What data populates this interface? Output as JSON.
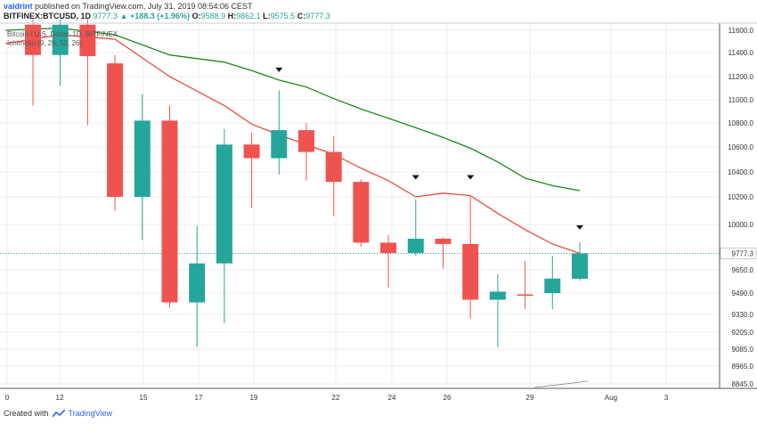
{
  "header": {
    "user": "valdrint",
    "published": " published on TradingView.com, July 31, 2019 08:54:06 CEST"
  },
  "info": {
    "symbol": "BITFINEX:BTCUSD, 1D",
    "last": "9777.3",
    "change": "▲ +188.3 (+1.96%)",
    "open_label": "O:",
    "open": "9588.9",
    "high_label": "H:",
    "high": "9862.1",
    "low_label": "L:",
    "low": "9575.5",
    "close_label": "C:",
    "close": "9777.3"
  },
  "legend": {
    "series": "Bitcoin / U.S. Dollar, 1D, BITFINEX",
    "indicator": "Ichimoku (9, 26, 52, 26)"
  },
  "footer": {
    "created": "Created with",
    "brand": "TradingView"
  },
  "colors": {
    "up": "#26a69a",
    "down": "#ef5350",
    "conversion": "#e74c3c",
    "base": "#1b8a1b",
    "grid": "#eeeeee"
  },
  "chart_data": {
    "type": "candlestick",
    "x_ticks": [
      "0",
      "12",
      "15",
      "17",
      "19",
      "22",
      "24",
      "26",
      "29",
      "Aug",
      "3"
    ],
    "y_ticks": [
      "11600.0",
      "11400.0",
      "11200.0",
      "11000.0",
      "10800.0",
      "10600.0",
      "10400.0",
      "10200.0",
      "10000.0",
      "9650.0",
      "9490.0",
      "9330.0",
      "9205.0",
      "9085.0",
      "8965.0",
      "8845.0"
    ],
    "last_price_label": "9777.3",
    "candles": [
      {
        "x": 10,
        "open": 11650,
        "high": 11700,
        "low": 10950,
        "close": 11380
      },
      {
        "x": 11,
        "open": 11380,
        "high": 11700,
        "low": 11120,
        "close": 11650
      },
      {
        "x": 12,
        "open": 11650,
        "high": 11700,
        "low": 10780,
        "close": 11370
      },
      {
        "x": 13,
        "open": 11310,
        "high": 11380,
        "low": 10100,
        "close": 10200
      },
      {
        "x": 14,
        "open": 10200,
        "high": 11050,
        "low": 9880,
        "close": 10820
      },
      {
        "x": 15,
        "open": 10820,
        "high": 10950,
        "low": 9380,
        "close": 9420
      },
      {
        "x": 16,
        "open": 9420,
        "high": 9990,
        "low": 9100,
        "close": 9700
      },
      {
        "x": 17,
        "open": 9700,
        "high": 10750,
        "low": 9270,
        "close": 10620
      },
      {
        "x": 18,
        "open": 10620,
        "high": 10720,
        "low": 10120,
        "close": 10510
      },
      {
        "x": 19,
        "open": 10510,
        "high": 11080,
        "low": 10380,
        "close": 10740
      },
      {
        "x": 20,
        "open": 10740,
        "high": 10800,
        "low": 10330,
        "close": 10560
      },
      {
        "x": 21,
        "open": 10560,
        "high": 10690,
        "low": 10060,
        "close": 10320
      },
      {
        "x": 22,
        "open": 10320,
        "high": 10340,
        "low": 9830,
        "close": 9860
      },
      {
        "x": 23,
        "open": 9860,
        "high": 9920,
        "low": 9530,
        "close": 9780
      },
      {
        "x": 24,
        "open": 9780,
        "high": 10180,
        "low": 9760,
        "close": 9890
      },
      {
        "x": 25,
        "open": 9890,
        "high": 9900,
        "low": 9660,
        "close": 9850
      },
      {
        "x": 26,
        "open": 9850,
        "high": 10200,
        "low": 9300,
        "close": 9440
      },
      {
        "x": 27,
        "open": 9440,
        "high": 9620,
        "low": 9100,
        "close": 9500
      },
      {
        "x": 28,
        "open": 9480,
        "high": 9720,
        "low": 9370,
        "close": 9470
      },
      {
        "x": 29,
        "open": 9490,
        "high": 9760,
        "low": 9370,
        "close": 9590
      },
      {
        "x": 30,
        "open": 9588.9,
        "high": 9862.1,
        "low": 9575.5,
        "close": 9777.3
      }
    ],
    "conversion_line": {
      "x": [
        9,
        11,
        13,
        15,
        17,
        18,
        19,
        20,
        21,
        22,
        23,
        24,
        25,
        26,
        27,
        28,
        29,
        30
      ],
      "y": [
        11480,
        11560,
        11520,
        11200,
        10950,
        10790,
        10700,
        10620,
        10540,
        10430,
        10330,
        10200,
        10230,
        10210,
        10080,
        9960,
        9850,
        9777
      ]
    },
    "base_line": {
      "x": [
        9,
        11,
        13,
        15,
        17,
        18,
        19,
        20,
        21,
        22,
        23,
        24,
        25,
        26,
        27,
        28,
        29,
        30
      ],
      "y": [
        11600,
        11620,
        11560,
        11380,
        11320,
        11250,
        11170,
        11110,
        11010,
        10920,
        10840,
        10760,
        10680,
        10590,
        10480,
        10350,
        10290,
        10250
      ]
    },
    "markers": [
      {
        "x": 19,
        "y": 11260
      },
      {
        "x": 24,
        "y": 10360
      },
      {
        "x": 26,
        "y": 10360
      },
      {
        "x": 30,
        "y": 9980
      }
    ]
  }
}
